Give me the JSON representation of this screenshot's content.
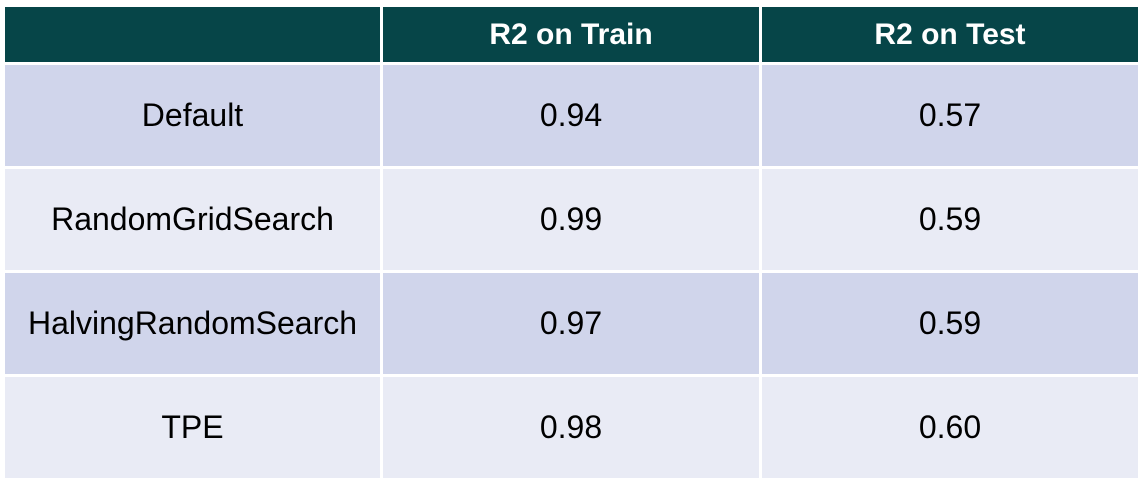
{
  "chart_data": {
    "type": "table",
    "columns": [
      "",
      "R2 on Train",
      "R2 on Test"
    ],
    "rows": [
      {
        "method": "Default",
        "train": "0.94",
        "test": "0.57"
      },
      {
        "method": "RandomGridSearch",
        "train": "0.99",
        "test": "0.59"
      },
      {
        "method": "HalvingRandomSearch",
        "train": "0.97",
        "test": "0.59"
      },
      {
        "method": "TPE",
        "train": "0.98",
        "test": "0.60"
      }
    ]
  },
  "colors": {
    "header_bg": "#064548",
    "header_text": "#ffffff",
    "row_band_dark": "#d0d5eb",
    "row_band_light": "#e9ebf5"
  }
}
